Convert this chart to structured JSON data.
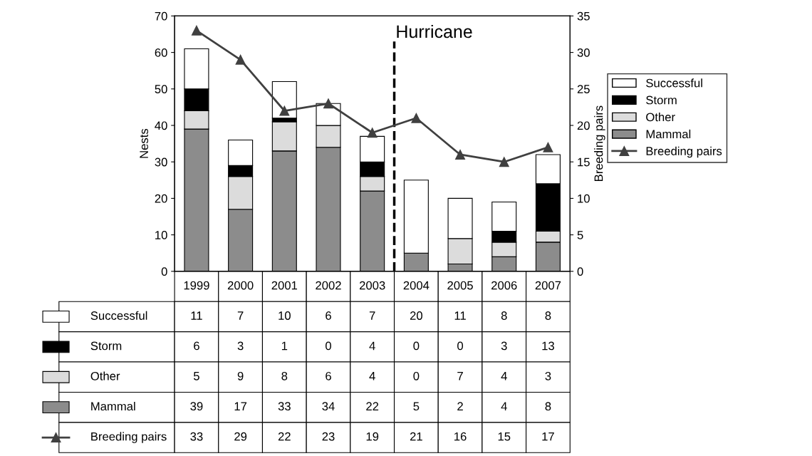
{
  "chart_data": {
    "type": "bar",
    "stacked": true,
    "ylabel": "Nests",
    "y2label": "Breeding pairs",
    "categories": [
      "1999",
      "2000",
      "2001",
      "2002",
      "2003",
      "2004",
      "2005",
      "2006",
      "2007"
    ],
    "series": [
      {
        "name": "Mammal",
        "color": "#8c8c8c",
        "values": [
          39,
          17,
          33,
          34,
          22,
          5,
          2,
          4,
          8
        ]
      },
      {
        "name": "Other",
        "color": "#dcdcdc",
        "values": [
          5,
          9,
          8,
          6,
          4,
          0,
          7,
          4,
          3
        ]
      },
      {
        "name": "Storm",
        "color": "#000000",
        "values": [
          6,
          3,
          1,
          0,
          4,
          0,
          0,
          3,
          13
        ]
      },
      {
        "name": "Successful",
        "color": "#ffffff",
        "values": [
          11,
          7,
          10,
          6,
          7,
          20,
          11,
          8,
          8
        ]
      },
      {
        "name": "Breeding pairs",
        "type": "line",
        "axis": "y2",
        "color": "#404040",
        "marker": "triangle",
        "values": [
          33,
          29,
          22,
          23,
          19,
          21,
          16,
          15,
          17
        ]
      }
    ],
    "ylim": [
      0,
      70
    ],
    "yticks": [
      0,
      10,
      20,
      30,
      40,
      50,
      60,
      70
    ],
    "y2lim": [
      0,
      35
    ],
    "y2ticks": [
      0,
      5,
      10,
      15,
      20,
      25,
      30,
      35
    ],
    "annotations": [
      "Hurricane"
    ],
    "data_labels": true,
    "legend": "right",
    "grid": false
  }
}
